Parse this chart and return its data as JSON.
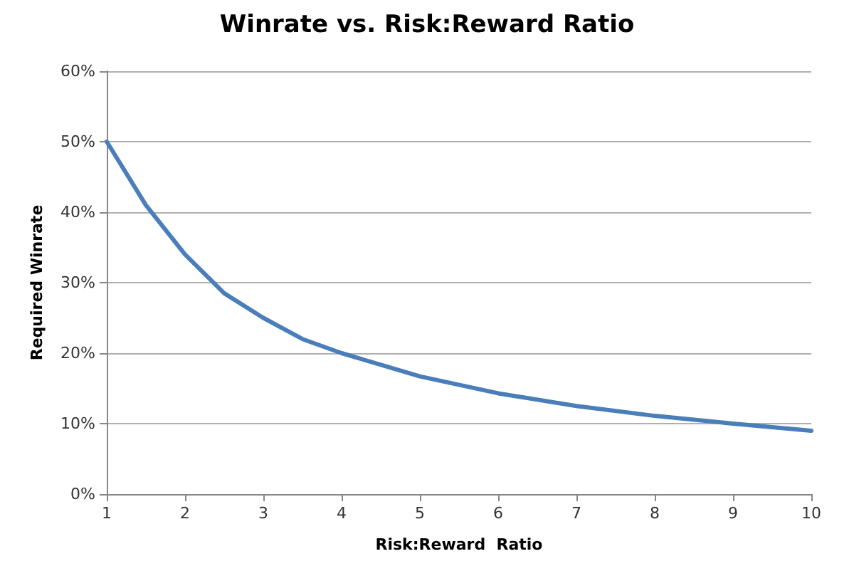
{
  "chart_data": {
    "type": "line",
    "title": "Winrate vs. Risk:Reward Ratio",
    "xlabel": "Risk:Reward  Ratio",
    "ylabel": "Required Winrate",
    "x": [
      1,
      1.5,
      2,
      2.5,
      3,
      3.5,
      4,
      5,
      6,
      7,
      8,
      9,
      10
    ],
    "series": [
      {
        "color": "#4a7ebb",
        "values": [
          50,
          41,
          34,
          28.5,
          25,
          22,
          20,
          16.7,
          14.3,
          12.5,
          11.1,
          10,
          9
        ]
      }
    ],
    "xlim": [
      1,
      10
    ],
    "xticks": [
      1,
      2,
      3,
      4,
      5,
      6,
      7,
      8,
      9,
      10
    ],
    "ylim": [
      0,
      60
    ],
    "yticks": [
      {
        "value": 0,
        "label": "0%"
      },
      {
        "value": 10,
        "label": "10%"
      },
      {
        "value": 20,
        "label": "20%"
      },
      {
        "value": 30,
        "label": "30%"
      },
      {
        "value": 40,
        "label": "40%"
      },
      {
        "value": 50,
        "label": "50%"
      },
      {
        "value": 60,
        "label": "60%"
      }
    ],
    "grid": "y",
    "marker": "none",
    "line_style": "solid"
  }
}
